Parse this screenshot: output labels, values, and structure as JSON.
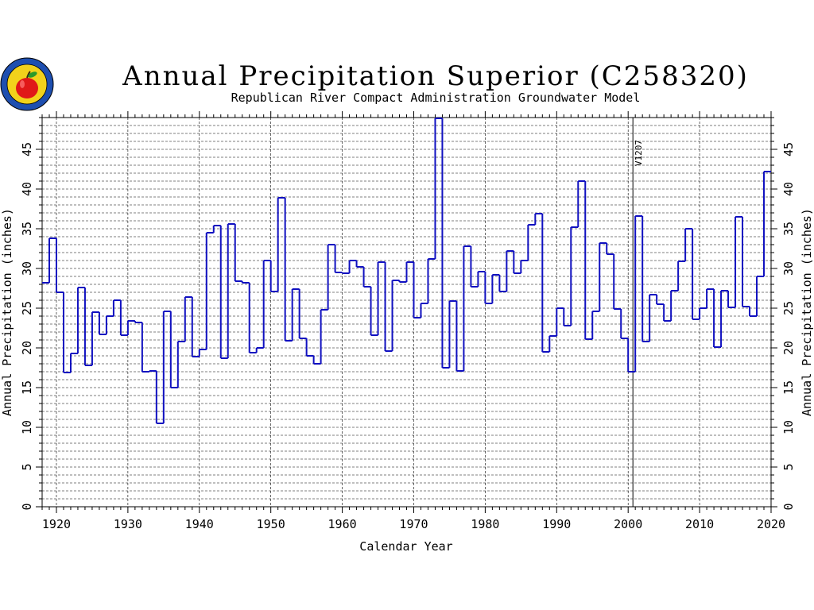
{
  "logo": {
    "name": "apple-seal-logo"
  },
  "chart_data": {
    "type": "line",
    "step": true,
    "title": "Annual Precipitation Superior (C258320)",
    "subtitle": "Republican River Compact Administration Groundwater Model",
    "xlabel": "Calendar Year",
    "ylabel": "Annual Precipitation (inches)",
    "ylabel_right": "Annual Precipitation (inches)",
    "xlim": [
      1918,
      2020
    ],
    "ylim": [
      0,
      49
    ],
    "xticks": [
      1920,
      1930,
      1940,
      1950,
      1960,
      1970,
      1980,
      1990,
      2000,
      2010,
      2020
    ],
    "yticks": [
      0,
      5,
      10,
      15,
      20,
      25,
      30,
      35,
      40,
      45
    ],
    "grid": true,
    "series_color": "#1010c0",
    "annotations": [
      {
        "text": "V1207",
        "x": 2001
      }
    ],
    "series": [
      {
        "x": [
          1918,
          1919,
          1920,
          1921,
          1922,
          1923,
          1924,
          1925,
          1926,
          1927,
          1928,
          1929,
          1930,
          1931,
          1932,
          1933,
          1934,
          1935,
          1936,
          1937,
          1938,
          1939,
          1940,
          1941,
          1942,
          1943,
          1944,
          1945,
          1946,
          1947,
          1948,
          1949,
          1950,
          1951,
          1952,
          1953,
          1954,
          1955,
          1956,
          1957,
          1958,
          1959,
          1960,
          1961,
          1962,
          1963,
          1964,
          1965,
          1966,
          1967,
          1968,
          1969,
          1970,
          1971,
          1972,
          1973,
          1974,
          1975,
          1976,
          1977,
          1978,
          1979,
          1980,
          1981,
          1982,
          1983,
          1984,
          1985,
          1986,
          1987,
          1988,
          1989,
          1990,
          1991,
          1992,
          1993,
          1994,
          1995,
          1996,
          1997,
          1998,
          1999,
          2000,
          2001,
          2002,
          2003,
          2004,
          2005,
          2006,
          2007,
          2008,
          2009,
          2010,
          2011,
          2012,
          2013,
          2014,
          2015,
          2016,
          2017,
          2018,
          2019
        ],
        "values": [
          28.2,
          33.8,
          27.0,
          16.9,
          19.3,
          27.6,
          17.8,
          24.5,
          21.7,
          24.0,
          26.0,
          21.6,
          23.4,
          23.2,
          17.0,
          17.1,
          10.5,
          24.6,
          15.0,
          20.8,
          26.4,
          18.9,
          19.8,
          34.5,
          35.4,
          18.7,
          35.6,
          28.4,
          28.2,
          19.4,
          20.0,
          31.0,
          27.1,
          38.9,
          20.9,
          27.4,
          21.2,
          19.0,
          18.0,
          24.8,
          33.0,
          29.5,
          29.4,
          31.0,
          30.2,
          27.7,
          21.6,
          30.8,
          19.6,
          28.5,
          28.3,
          30.8,
          23.8,
          25.6,
          31.2,
          48.9,
          17.5,
          25.9,
          17.1,
          32.8,
          27.7,
          29.6,
          25.6,
          29.2,
          27.1,
          32.2,
          29.4,
          31.0,
          35.5,
          36.9,
          19.5,
          21.5,
          25.0,
          22.8,
          35.2,
          41.0,
          21.1,
          24.6,
          33.2,
          31.8,
          24.9,
          21.2,
          17.0,
          36.6,
          20.8,
          26.7,
          25.5,
          23.4,
          27.2,
          30.9,
          35.0,
          23.6,
          25.0,
          27.4,
          20.1,
          27.2,
          25.1,
          36.5,
          25.2,
          24.0,
          29.0,
          42.2
        ]
      }
    ]
  }
}
